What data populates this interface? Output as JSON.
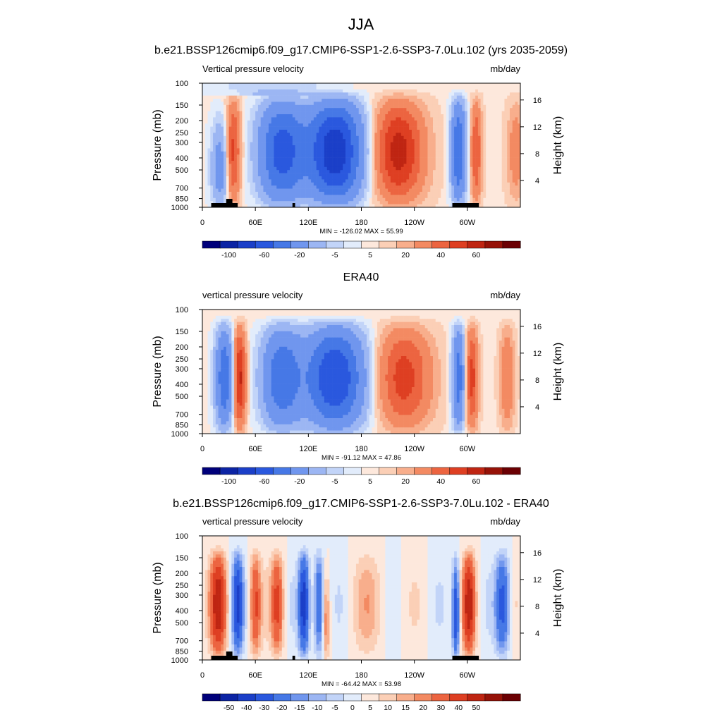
{
  "figure": {
    "title": "JJA"
  },
  "chart_data": [
    {
      "type": "heatmap",
      "title": "b.e21.BSSP126cmip6.f09_g17.CMIP6-SSP1-2.6-SSP3-7.0Lu.102 (yrs 2035-2059)",
      "left_label": "Vertical pressure velocity",
      "right_label": "mb/day",
      "ylabel": "Pressure (mb)",
      "y2label": "Height (km)",
      "x_ticks": [
        "0",
        "60E",
        "120E",
        "180",
        "120W",
        "60W"
      ],
      "y_ticks": [
        100,
        150,
        200,
        250,
        300,
        400,
        500,
        700,
        850,
        1000
      ],
      "y2_ticks": [
        16,
        12,
        8,
        4
      ],
      "stats": "MIN = -126.02  MAX =  55.99",
      "colorbar_labels": [
        "-100",
        "-60",
        "-20",
        "-5",
        "5",
        "20",
        "40",
        "60"
      ],
      "colorbar_levels": [
        -120,
        -100,
        -80,
        -60,
        -40,
        -20,
        -10,
        -5,
        -1,
        1,
        5,
        10,
        20,
        30,
        40,
        50,
        60
      ],
      "ylim": [
        1000,
        100
      ],
      "xlim_deg": [
        0,
        360
      ],
      "colors": [
        "#00007a",
        "#0c24a4",
        "#1b3fc8",
        "#2a58de",
        "#4678e6",
        "#7096ee",
        "#9cb6f3",
        "#c2d4f8",
        "#e2ecfb",
        "#fde8dc",
        "#fbcfb6",
        "#f8ae8c",
        "#f38a62",
        "#ec6440",
        "#de3f22",
        "#bf2512",
        "#961208",
        "#6b0003"
      ],
      "features": [
        [
          [
            0.0,
            0.0
          ],
          [
            0.06,
            0.1
          ],
          [
            0.14,
            0.18
          ],
          [
            0.22,
            0.26
          ],
          [
            0.28,
            0.24
          ],
          [
            0.36,
            0.04
          ],
          [
            0.44,
            0.18
          ],
          [
            0.52,
            0.22
          ],
          [
            0.58,
            -0.12
          ],
          [
            0.66,
            -0.22
          ],
          [
            0.76,
            0.08
          ],
          [
            0.86,
            0.12
          ],
          [
            1.0,
            0.0
          ]
        ],
        [
          [
            0.0,
            0.0
          ],
          [
            0.06,
            0.0
          ],
          [
            0.1,
            0.08
          ],
          [
            0.14,
            0.16
          ],
          [
            0.18,
            0.24
          ],
          [
            0.24,
            0.22
          ],
          [
            0.3,
            0.02
          ],
          [
            0.36,
            0.0
          ],
          [
            0.42,
            0.0
          ],
          [
            0.5,
            0.0
          ],
          [
            0.56,
            -0.02
          ],
          [
            0.62,
            -0.06
          ],
          [
            0.7,
            -0.08
          ],
          [
            0.78,
            0.0
          ],
          [
            0.86,
            0.0
          ],
          [
            0.92,
            0.0
          ],
          [
            1.0,
            0.0
          ]
        ],
        [
          [
            0.0,
            0.0
          ],
          [
            0.04,
            0.0
          ],
          [
            0.08,
            0.08
          ],
          [
            0.12,
            0.18
          ],
          [
            0.16,
            0.18
          ],
          [
            0.22,
            0.06
          ],
          [
            0.26,
            -0.04
          ],
          [
            0.3,
            -0.02
          ],
          [
            0.36,
            0.08
          ],
          [
            0.42,
            0.1
          ],
          [
            0.5,
            0.04
          ],
          [
            0.58,
            -0.06
          ],
          [
            0.66,
            -0.04
          ],
          [
            0.72,
            0.0
          ],
          [
            0.8,
            0.0
          ],
          [
            0.88,
            0.0
          ],
          [
            1.0,
            0.0
          ]
        ]
      ]
    },
    {
      "type": "heatmap",
      "title": "ERA40",
      "left_label": "vertical pressure velocity",
      "right_label": "mb/day",
      "ylabel": "Pressure (mb)",
      "y2label": "Height (km)",
      "x_ticks": [
        "0",
        "60E",
        "120E",
        "180",
        "120W",
        "60W"
      ],
      "y_ticks": [
        100,
        150,
        200,
        250,
        300,
        400,
        500,
        700,
        850,
        1000
      ],
      "y2_ticks": [
        16,
        12,
        8,
        4
      ],
      "stats": "MIN = -91.12  MAX =  47.86",
      "colorbar_labels": [
        "-100",
        "-60",
        "-20",
        "-5",
        "5",
        "20",
        "40",
        "60"
      ],
      "colorbar_levels": [
        -120,
        -100,
        -80,
        -60,
        -40,
        -20,
        -10,
        -5,
        -1,
        1,
        5,
        10,
        20,
        30,
        40,
        50,
        60
      ],
      "ylim": [
        1000,
        100
      ],
      "xlim_deg": [
        0,
        360
      ],
      "colors": [
        "#00007a",
        "#0c24a4",
        "#1b3fc8",
        "#2a58de",
        "#4678e6",
        "#7096ee",
        "#9cb6f3",
        "#c2d4f8",
        "#e2ecfb",
        "#fde8dc",
        "#fbcfb6",
        "#f8ae8c",
        "#f38a62",
        "#ec6440",
        "#de3f22",
        "#bf2512",
        "#961208",
        "#6b0003"
      ],
      "features": []
    },
    {
      "type": "heatmap",
      "title": "b.e21.BSSP126cmip6.f09_g17.CMIP6-SSP1-2.6-SSP3-7.0Lu.102 - ERA40",
      "left_label": "vertical pressure velocity",
      "right_label": "mb/day",
      "ylabel": "Pressure (mb)",
      "y2label": "Height (km)",
      "x_ticks": [
        "0",
        "60E",
        "120E",
        "180",
        "120W",
        "60W"
      ],
      "y_ticks": [
        100,
        150,
        200,
        250,
        300,
        400,
        500,
        700,
        850,
        1000
      ],
      "y2_ticks": [
        16,
        12,
        8,
        4
      ],
      "stats": "MIN = -64.42  MAX =  53.98",
      "colorbar_labels": [
        "-50",
        "-40",
        "-30",
        "-20",
        "-15",
        "-10",
        "-5",
        "0",
        "5",
        "10",
        "15",
        "20",
        "30",
        "40",
        "50"
      ],
      "colorbar_levels": [
        -60,
        -50,
        -40,
        -30,
        -20,
        -15,
        -10,
        -5,
        0,
        5,
        10,
        15,
        20,
        30,
        40,
        50,
        60
      ],
      "ylim": [
        1000,
        100
      ],
      "xlim_deg": [
        0,
        360
      ],
      "colors": [
        "#00007a",
        "#0c24a4",
        "#1b3fc8",
        "#2a58de",
        "#4678e6",
        "#7096ee",
        "#9cb6f3",
        "#c2d4f8",
        "#e2ecfb",
        "#fde8dc",
        "#fbcfb6",
        "#f8ae8c",
        "#f38a62",
        "#ec6440",
        "#de3f22",
        "#bf2512",
        "#961208",
        "#6b0003"
      ],
      "features": []
    }
  ]
}
